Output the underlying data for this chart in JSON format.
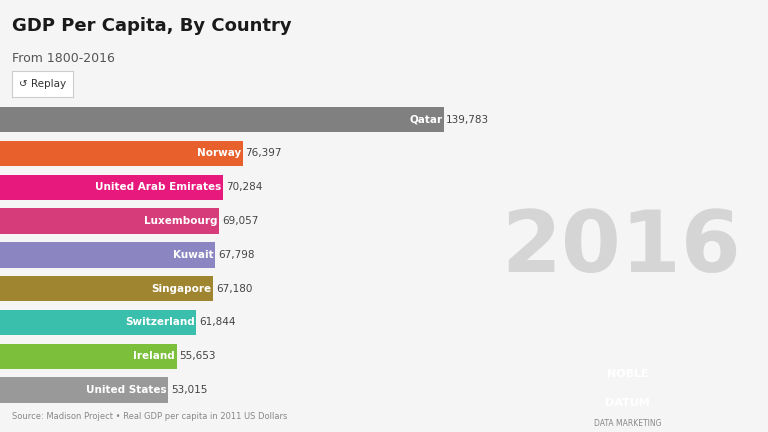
{
  "title": "GDP Per Capita, By Country",
  "subtitle": "From 1800-2016",
  "year_label": "2016",
  "countries": [
    "Qatar",
    "Norway",
    "United Arab Emirates",
    "Luxembourg",
    "Kuwait",
    "Singapore",
    "Switzerland",
    "Ireland",
    "United States"
  ],
  "values": [
    139783,
    76397,
    70284,
    69057,
    67798,
    67180,
    61844,
    55653,
    53015
  ],
  "colors": [
    "#808080",
    "#E8612C",
    "#E8197D",
    "#D63B7A",
    "#8B85C1",
    "#A08530",
    "#3BBFAD",
    "#7BBF3B",
    "#999999"
  ],
  "background_color": "#f5f5f5",
  "value_labels": [
    "139,783",
    "76,397",
    "70,284",
    "69,057",
    "67,798",
    "67,180",
    "61,844",
    "55,653",
    "53,015"
  ],
  "source_text": "Source: Madison Project • Real GDP per capita in 2011 US Dollars",
  "replay_text": "↺ Replay",
  "noble_color": "#3BBFAD",
  "datum_color": "#1a1a1a",
  "xlim": [
    0,
    150000
  ]
}
